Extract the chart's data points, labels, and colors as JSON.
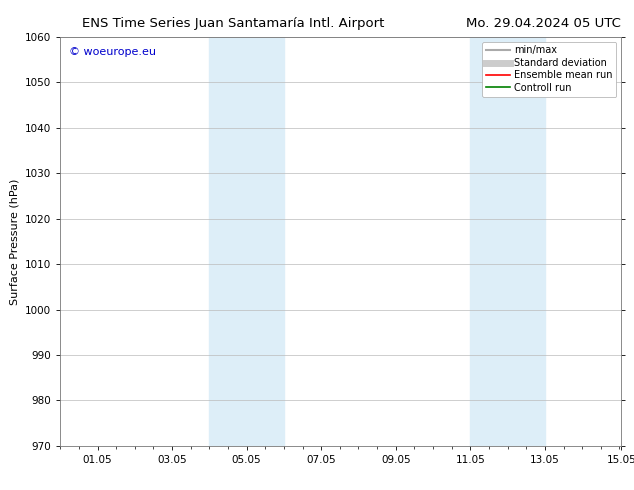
{
  "title_left": "ENS Time Series Juan Santamaría Intl. Airport",
  "title_right": "Mo. 29.04.2024 05 UTC",
  "ylabel": "Surface Pressure (hPa)",
  "xlim": [
    0.0,
    15.05
  ],
  "ylim": [
    970,
    1060
  ],
  "yticks": [
    970,
    980,
    990,
    1000,
    1010,
    1020,
    1030,
    1040,
    1050,
    1060
  ],
  "xtick_labels": [
    "01.05",
    "03.05",
    "05.05",
    "07.05",
    "09.05",
    "11.05",
    "13.05",
    "15.05"
  ],
  "xtick_positions": [
    1.0,
    3.0,
    5.0,
    7.0,
    9.0,
    11.0,
    13.0,
    15.05
  ],
  "shaded_regions": [
    {
      "xmin": 4.0,
      "xmax": 6.0,
      "color": "#ddeef8"
    },
    {
      "xmin": 11.0,
      "xmax": 13.0,
      "color": "#ddeef8"
    }
  ],
  "watermark_text": "© woeurope.eu",
  "watermark_color": "#0000cc",
  "legend_entries": [
    {
      "label": "min/max",
      "color": "#aaaaaa",
      "lw": 1.5
    },
    {
      "label": "Standard deviation",
      "color": "#cccccc",
      "lw": 5
    },
    {
      "label": "Ensemble mean run",
      "color": "red",
      "lw": 1.2
    },
    {
      "label": "Controll run",
      "color": "green",
      "lw": 1.2
    }
  ],
  "background_color": "#ffffff",
  "grid_color": "#bbbbbb",
  "title_fontsize": 9.5,
  "axis_label_fontsize": 8,
  "tick_fontsize": 7.5,
  "legend_fontsize": 7,
  "watermark_fontsize": 8
}
